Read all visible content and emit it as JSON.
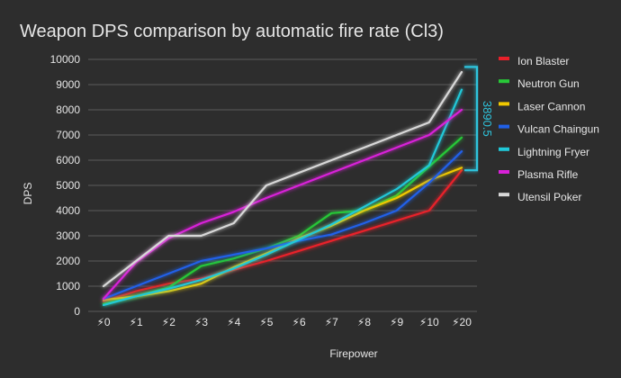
{
  "chart_data": {
    "type": "line",
    "title": "Weapon DPS comparison by automatic fire rate (Cl3)",
    "xlabel": "Firepower",
    "ylabel": "DPS",
    "categories": [
      "⚡0",
      "⚡1",
      "⚡2",
      "⚡3",
      "⚡4",
      "⚡5",
      "⚡6",
      "⚡7",
      "⚡8",
      "⚡9",
      "⚡10",
      "⚡20"
    ],
    "ylim": [
      0,
      10000
    ],
    "yticks": [
      0,
      1000,
      2000,
      3000,
      4000,
      5000,
      6000,
      7000,
      8000,
      9000,
      10000
    ],
    "grid": true,
    "legend_position": "right",
    "series": [
      {
        "name": "Ion Blaster",
        "color": "#e8202a",
        "values": [
          400,
          800,
          1100,
          1300,
          1650,
          2000,
          2400,
          2800,
          3200,
          3600,
          4000,
          5600
        ]
      },
      {
        "name": "Neutron Gun",
        "color": "#28c838",
        "values": [
          300,
          600,
          950,
          1800,
          2100,
          2500,
          3000,
          3900,
          4000,
          4600,
          5750,
          6900
        ]
      },
      {
        "name": "Laser Cannon",
        "color": "#f0c800",
        "values": [
          450,
          600,
          800,
          1100,
          1750,
          2300,
          2900,
          3400,
          4000,
          4500,
          5200,
          5700
        ]
      },
      {
        "name": "Vulcan Chaingun",
        "color": "#2060e8",
        "values": [
          500,
          1000,
          1500,
          2000,
          2250,
          2500,
          2800,
          3050,
          3500,
          4000,
          5100,
          6350
        ]
      },
      {
        "name": "Lightning Fryer",
        "color": "#20c8d8",
        "values": [
          250,
          600,
          900,
          1250,
          1700,
          2250,
          2850,
          3450,
          4150,
          4850,
          5800,
          8800
        ]
      },
      {
        "name": "Plasma Rifle",
        "color": "#d820d8",
        "values": [
          500,
          1950,
          2900,
          3500,
          3950,
          4500,
          5000,
          5500,
          6000,
          6500,
          7000,
          8000
        ]
      },
      {
        "name": "Utensil Poker",
        "color": "#d8d8d8",
        "values": [
          1000,
          2000,
          3000,
          3000,
          3500,
          5000,
          5500,
          6000,
          6500,
          7000,
          7500,
          9500
        ]
      }
    ],
    "annotation": {
      "text": "3890.5",
      "from": 5600,
      "to": 9700,
      "color": "#2ec4dd"
    }
  }
}
